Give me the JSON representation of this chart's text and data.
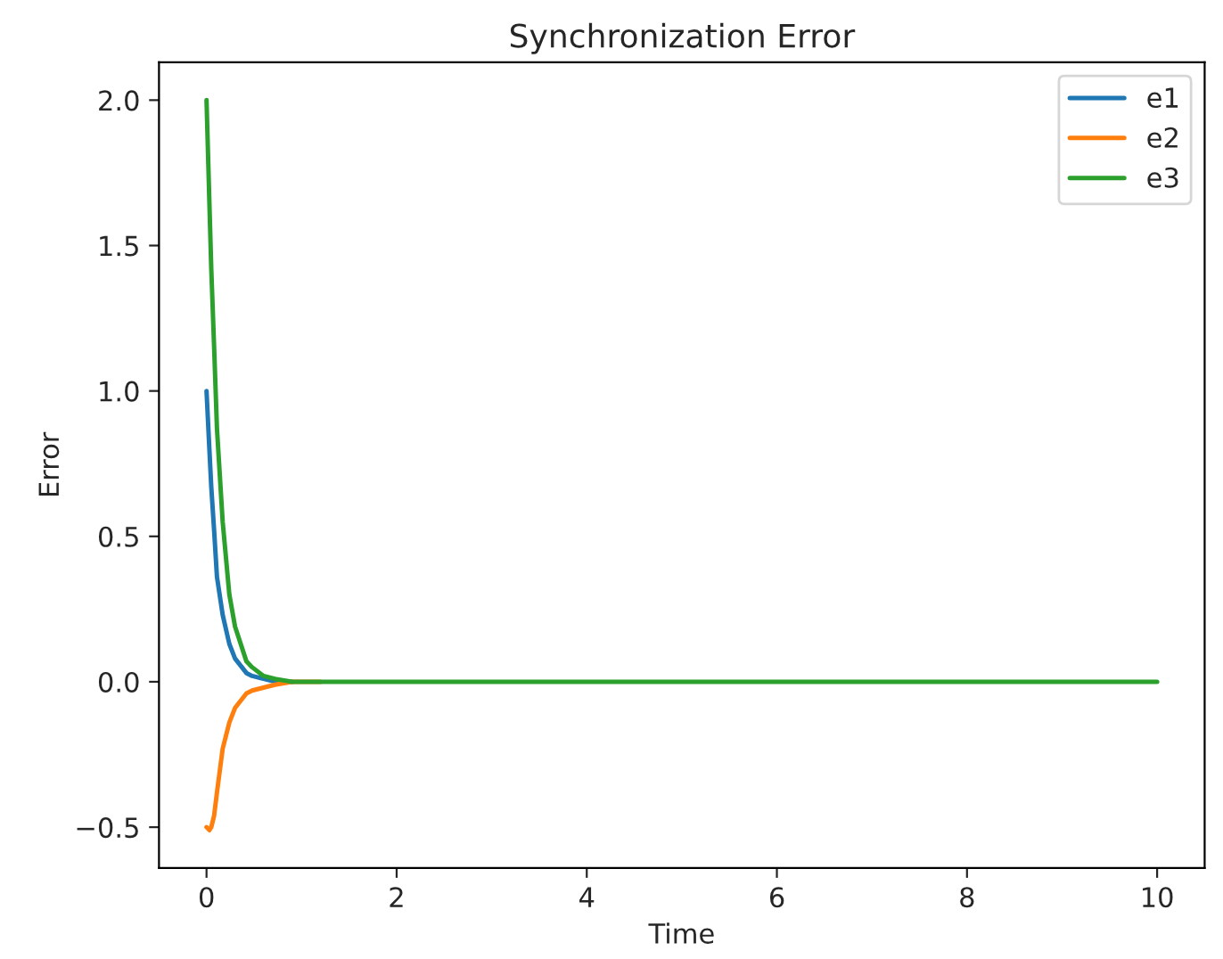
{
  "chart_data": {
    "type": "line",
    "title": "Synchronization Error",
    "xlabel": "Time",
    "ylabel": "Error",
    "xlim": [
      -0.5,
      10.5
    ],
    "ylim": [
      -0.64,
      2.13
    ],
    "xticks": [
      0,
      2,
      4,
      6,
      8,
      10
    ],
    "yticks": [
      {
        "value": -0.5,
        "label": "−0.5"
      },
      {
        "value": 0,
        "label": "0.0"
      },
      {
        "value": 0.5,
        "label": "0.5"
      },
      {
        "value": 1,
        "label": "1.0"
      },
      {
        "value": 1.5,
        "label": "1.5"
      },
      {
        "value": 2,
        "label": "2.0"
      }
    ],
    "grid": false,
    "legend": "top right",
    "marker": "none",
    "line_style": "solid",
    "x": [
      0,
      0.03,
      0.05,
      0.08,
      0.11,
      0.17,
      0.24,
      0.3,
      0.42,
      0.48,
      0.6,
      0.72,
      0.9,
      1.2,
      2,
      4,
      6,
      8,
      10
    ],
    "series": [
      {
        "name": "e1",
        "color": "#1f77b4",
        "values": [
          1.0,
          0.8,
          0.67,
          0.52,
          0.36,
          0.23,
          0.13,
          0.08,
          0.03,
          0.02,
          0.01,
          0.0,
          0.0,
          null,
          null,
          null,
          null,
          null,
          null
        ]
      },
      {
        "name": "e2",
        "color": "#ff7f0e",
        "values": [
          -0.5,
          -0.51,
          -0.5,
          -0.46,
          -0.38,
          -0.23,
          -0.14,
          -0.09,
          -0.04,
          -0.03,
          -0.02,
          -0.01,
          0.0,
          0.0,
          null,
          null,
          null,
          null,
          null
        ]
      },
      {
        "name": "e3",
        "color": "#2ca02c",
        "values": [
          2.0,
          1.65,
          1.42,
          1.15,
          0.87,
          0.55,
          0.3,
          0.19,
          0.07,
          0.05,
          0.02,
          0.01,
          0.0,
          0.0,
          0.0,
          0.0,
          0.0,
          0.0,
          0.0
        ]
      }
    ]
  }
}
